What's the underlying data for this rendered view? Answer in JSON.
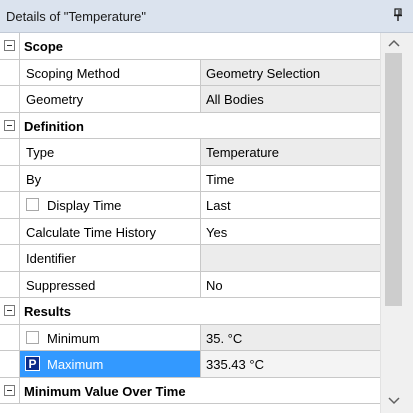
{
  "title": "Details of \"Temperature\"",
  "groups": {
    "scope": "Scope",
    "definition": "Definition",
    "results": "Results",
    "min_over_time": "Minimum Value Over Time"
  },
  "rows": {
    "scoping_method": {
      "name": "Scoping Method",
      "value": "Geometry Selection"
    },
    "geometry": {
      "name": "Geometry",
      "value": "All Bodies"
    },
    "type": {
      "name": "Type",
      "value": "Temperature"
    },
    "by": {
      "name": "By",
      "value": "Time"
    },
    "display_time": {
      "name": "Display Time",
      "value": "Last"
    },
    "calc_history": {
      "name": "Calculate Time History",
      "value": "Yes"
    },
    "identifier": {
      "name": "Identifier",
      "value": ""
    },
    "suppressed": {
      "name": "Suppressed",
      "value": "No"
    },
    "minimum": {
      "name": "Minimum",
      "value": "35. °C"
    },
    "maximum": {
      "name": "Maximum",
      "value": "335.43 °C",
      "badge": "P"
    }
  },
  "colors": {
    "selection": "#3399ff",
    "titlebar": "#dbe3ee",
    "readonly_cell": "#ececec",
    "badge": "#0a2a8a"
  }
}
